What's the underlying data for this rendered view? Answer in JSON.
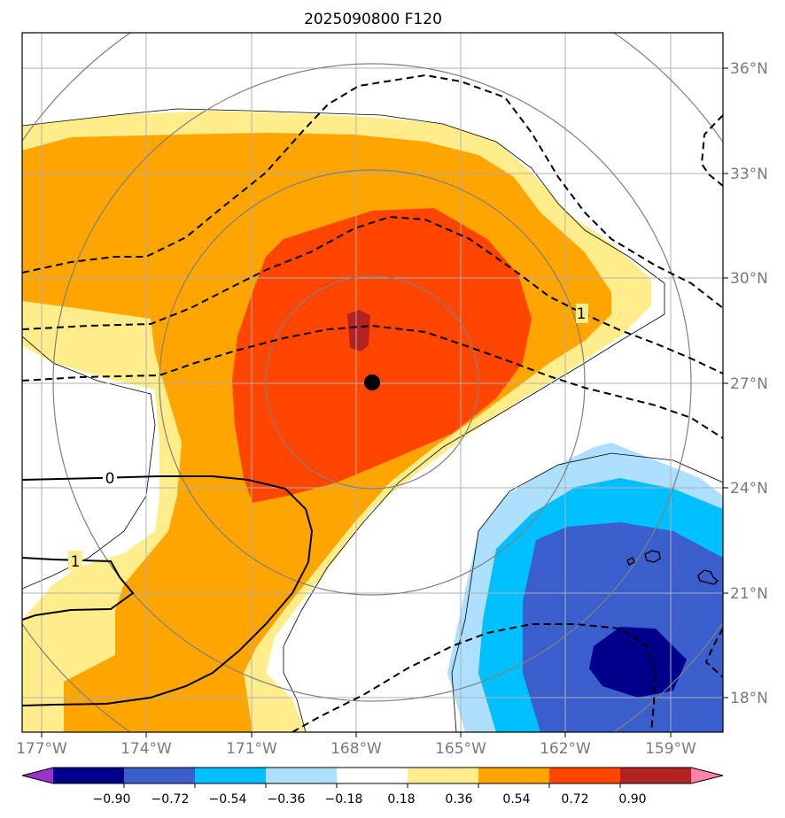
{
  "title": "2025090800 F120",
  "map": {
    "x_ticks": [
      "177°W",
      "174°W",
      "171°W",
      "168°W",
      "165°W",
      "162°W",
      "159°W"
    ],
    "y_ticks": [
      "36°N",
      "33°N",
      "30°N",
      "27°N",
      "24°N",
      "21°N",
      "18°N"
    ],
    "contour_labels": [
      "0",
      "1",
      "1"
    ],
    "center_marker": {
      "lon": -168.4,
      "lat": 27.0
    }
  },
  "colorbar": {
    "ticks": [
      "−0.90",
      "−0.72",
      "−0.54",
      "−0.36",
      "−0.18",
      "0.18",
      "0.36",
      "0.54",
      "0.72",
      "0.90"
    ],
    "colors": [
      "#9932CC",
      "#00008B",
      "#3A5FCD",
      "#00BFFF",
      "#ADDFFF",
      "#FFFFFF",
      "#FFEC8B",
      "#FFA500",
      "#FF4500",
      "#B22222",
      "#FF82AB"
    ]
  },
  "colors": {
    "grid": "#b0b0b0",
    "range_rings": "#808080",
    "coastline": "#000000"
  }
}
